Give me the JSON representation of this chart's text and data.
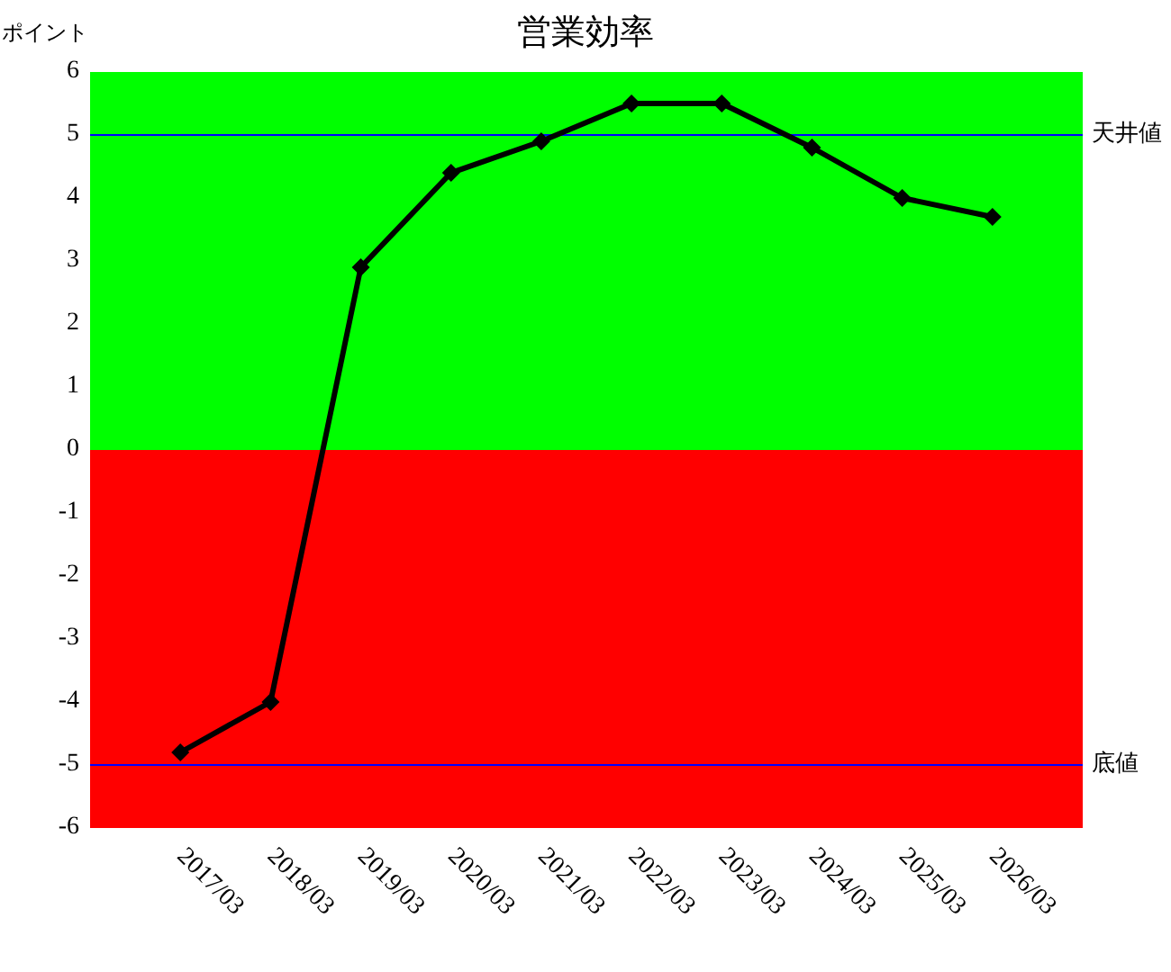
{
  "chart_data": {
    "type": "line",
    "title": "営業効率",
    "ylabel": "ポイント",
    "categories": [
      "2017/03",
      "2018/03",
      "2019/03",
      "2020/03",
      "2021/03",
      "2022/03",
      "2023/03",
      "2024/03",
      "2025/03",
      "2026/03"
    ],
    "values": [
      -4.8,
      -4.0,
      2.9,
      4.4,
      4.9,
      5.5,
      5.5,
      4.8,
      4.0,
      3.7
    ],
    "color": "#000000",
    "marker": "diamond",
    "line_style": "solid",
    "ylim": [
      -6,
      6
    ],
    "yticks": [
      -6,
      -5,
      -4,
      -3,
      -2,
      -1,
      0,
      1,
      2,
      3,
      4,
      5,
      6
    ],
    "bands": [
      {
        "axis": "y",
        "from": 0,
        "to": 6,
        "color": "#00ff00"
      },
      {
        "axis": "y",
        "from": -6,
        "to": 0,
        "color": "#ff0000"
      }
    ],
    "ref_lines": [
      {
        "axis": "y",
        "value": 5,
        "label": "天井値",
        "color": "#0000ff"
      },
      {
        "axis": "y",
        "value": -5,
        "label": "底値",
        "color": "#0000ff"
      }
    ]
  }
}
